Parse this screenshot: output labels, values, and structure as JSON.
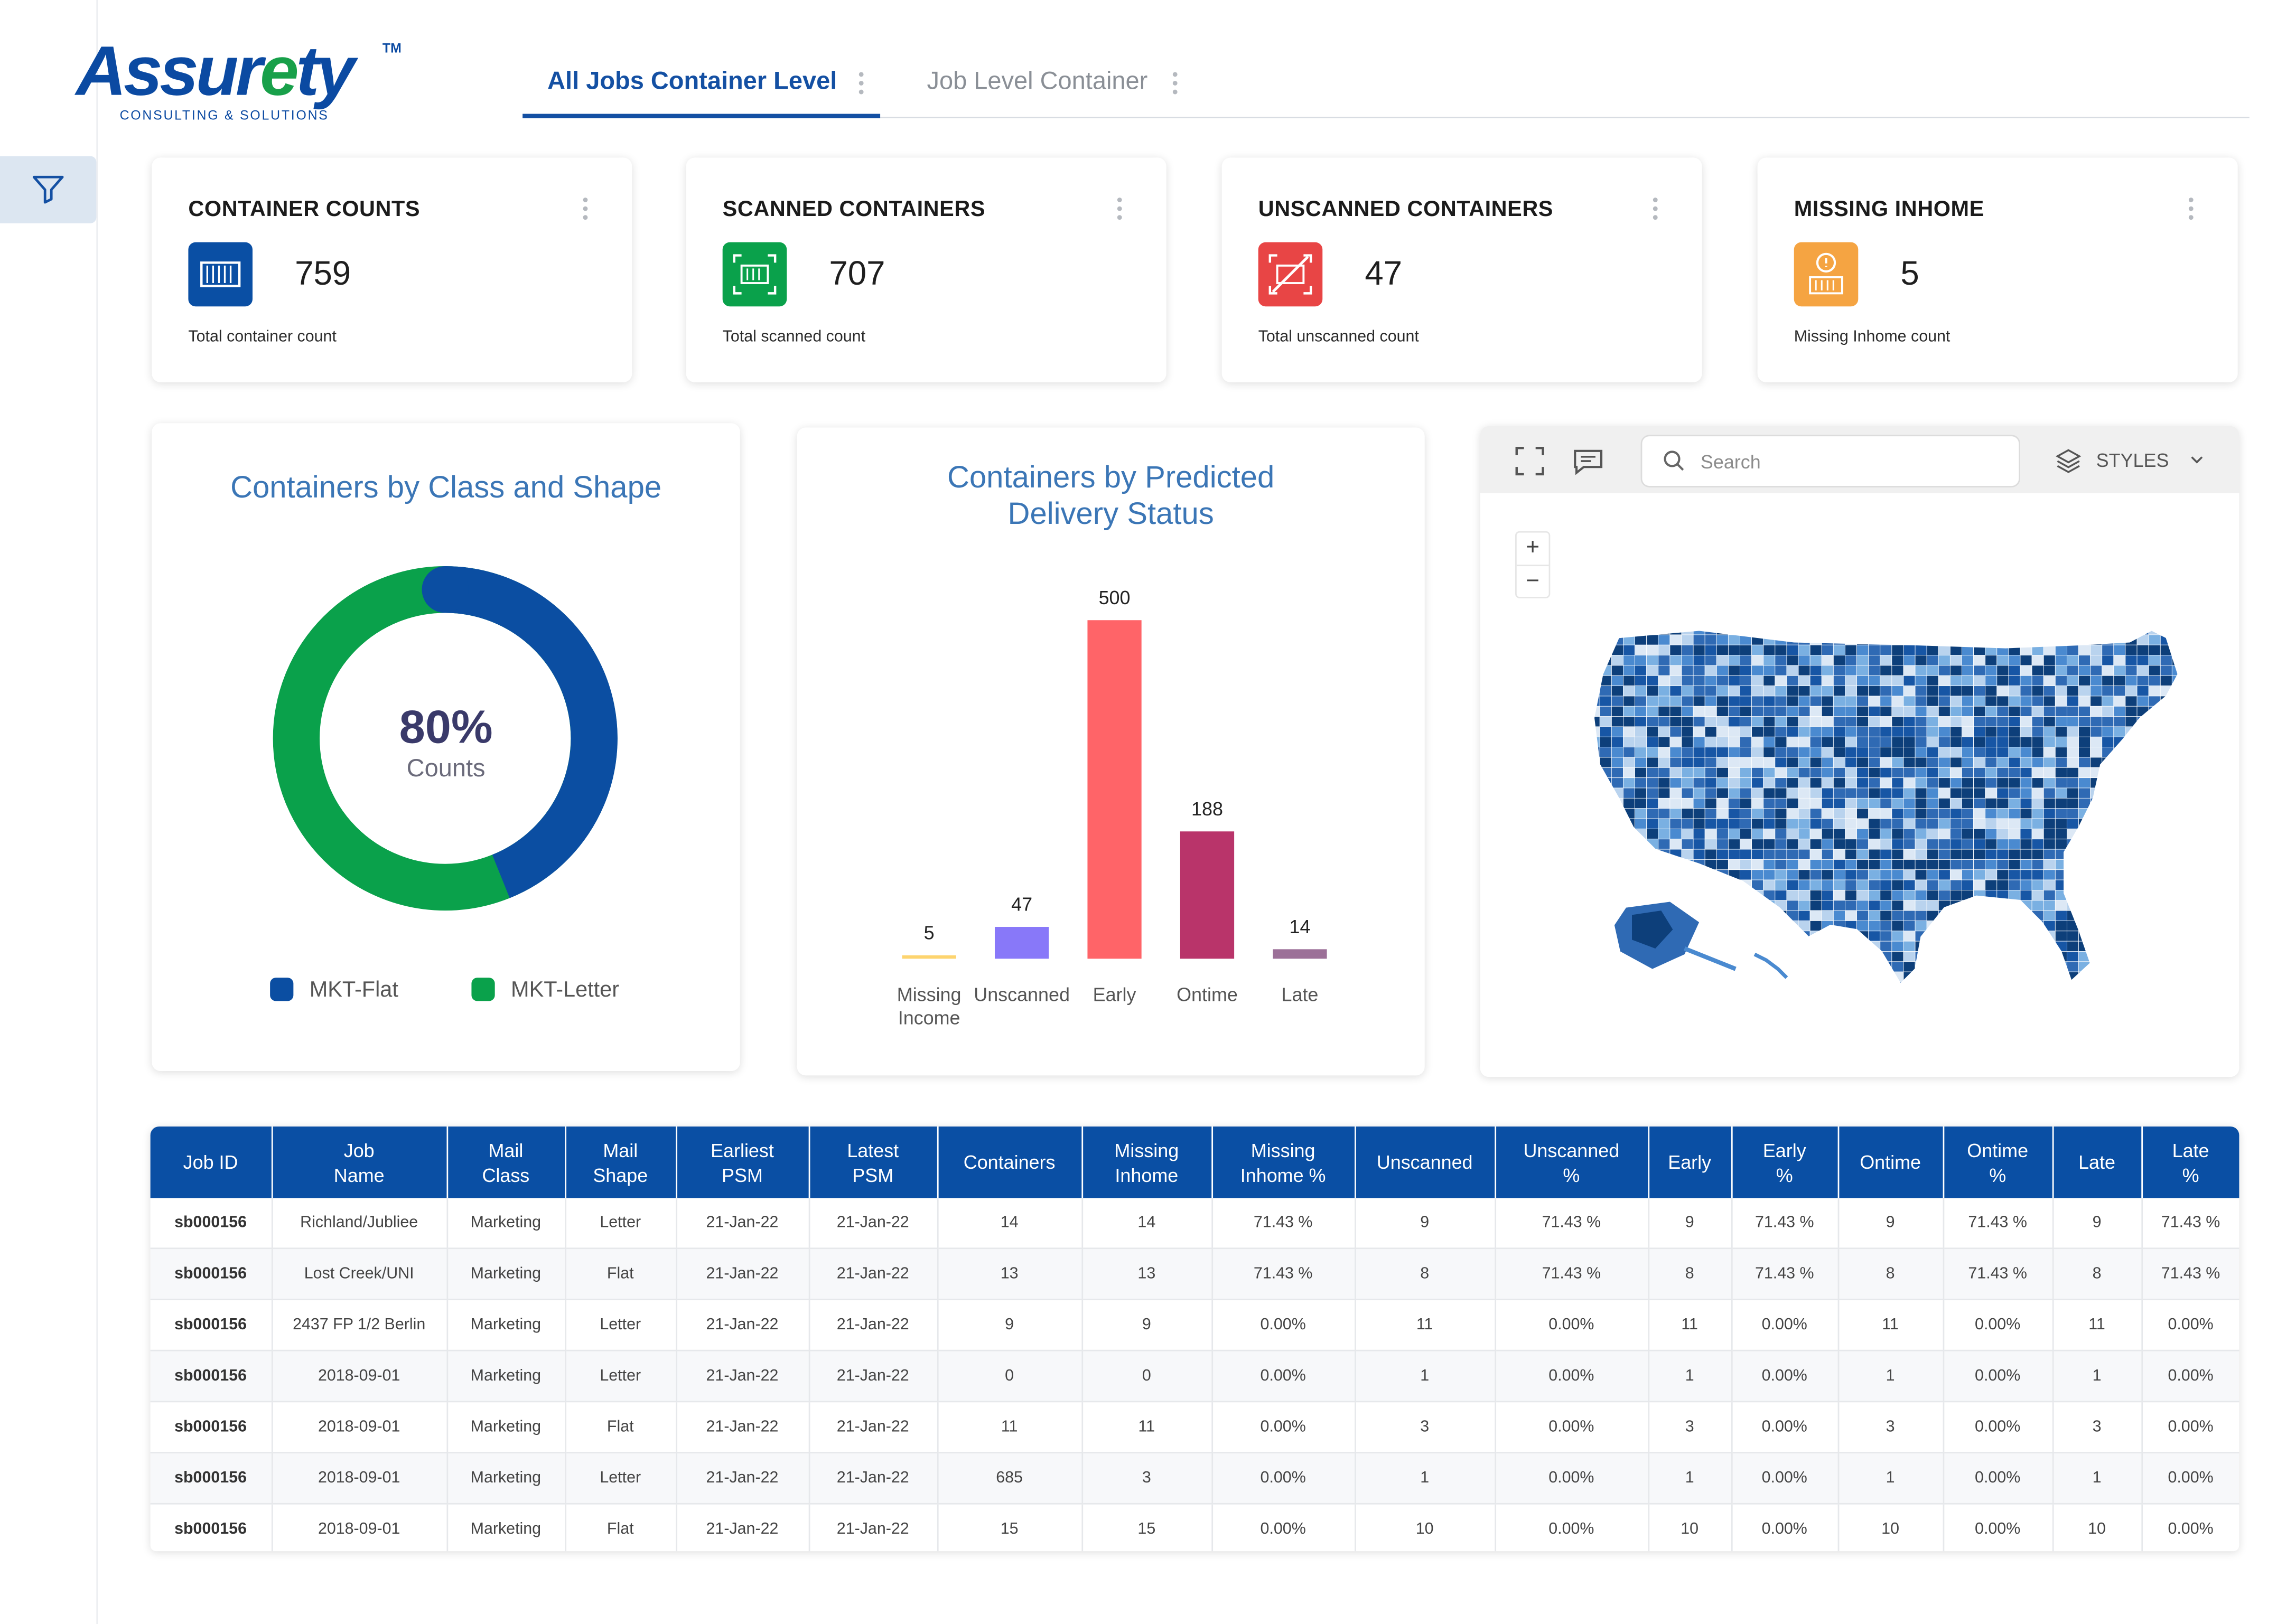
{
  "brand": {
    "name_part1": "Assur",
    "name_e": "e",
    "name_part2": "ty",
    "tm": "TM",
    "tagline": "CONSULTING & SOLUTIONS"
  },
  "tabs": [
    {
      "label": "All Jobs Container Level",
      "active": true
    },
    {
      "label": "Job Level Container",
      "active": false
    }
  ],
  "kpis": [
    {
      "title": "CONTAINER COUNTS",
      "value": "759",
      "subtitle": "Total container count",
      "icon": "container-icon",
      "color": "#0a4fa4"
    },
    {
      "title": "SCANNED CONTAINERS",
      "value": "707",
      "subtitle": "Total scanned count",
      "icon": "scanned-container-icon",
      "color": "#0aa14b"
    },
    {
      "title": "UNSCANNED CONTAINERS",
      "value": "47",
      "subtitle": "Total unscanned count",
      "icon": "unscanned-container-icon",
      "color": "#e84545"
    },
    {
      "title": "MISSING INHOME",
      "value": "5",
      "subtitle": "Missing Inhome count",
      "icon": "missing-container-icon",
      "color": "#f5a442"
    }
  ],
  "donut": {
    "title": "Containers by Class and Shape",
    "center_value": "80%",
    "center_label": "Counts",
    "legend": [
      {
        "name": "MKT-Flat",
        "color": "#0b4ea2"
      },
      {
        "name": "MKT-Letter",
        "color": "#0aa14b"
      }
    ]
  },
  "chart_data": {
    "type": "bar",
    "title": "Containers by Predicted Delivery Status",
    "categories": [
      "Missing Income",
      "Unscanned",
      "Early",
      "Ontime",
      "Late"
    ],
    "category_lines": [
      [
        "Missing",
        "Income"
      ],
      [
        "Unscanned"
      ],
      [
        "Early"
      ],
      [
        "Ontime"
      ],
      [
        "Late"
      ]
    ],
    "values": [
      5,
      47,
      500,
      188,
      14
    ],
    "colors": [
      "#fdd46f",
      "#8878f9",
      "#ff6468",
      "#b9346a",
      "#9c7098"
    ],
    "ylim": [
      0,
      500
    ],
    "grid": false,
    "xlabel": "",
    "ylabel": ""
  },
  "map": {
    "search_placeholder": "Search",
    "styles_label": "STYLES",
    "zoom_in": "+",
    "zoom_out": "−"
  },
  "table": {
    "headers": [
      [
        "Job ID"
      ],
      [
        "Job",
        "Name"
      ],
      [
        "Mail",
        "Class"
      ],
      [
        "Mail",
        "Shape"
      ],
      [
        "Earliest",
        "PSM"
      ],
      [
        "Latest",
        "PSM"
      ],
      [
        "Containers"
      ],
      [
        "Missing",
        "Inhome"
      ],
      [
        "Missing",
        "Inhome %"
      ],
      [
        "Unscanned"
      ],
      [
        "Unscanned",
        "%"
      ],
      [
        "Early"
      ],
      [
        "Early",
        "%"
      ],
      [
        "Ontime"
      ],
      [
        "Ontime",
        "%"
      ],
      [
        "Late"
      ],
      [
        "Late",
        "%"
      ]
    ],
    "rows": [
      [
        "sb000156",
        "Richland/Jubliee",
        "Marketing",
        "Letter",
        "21-Jan-22",
        "21-Jan-22",
        "14",
        "14",
        "71.43 %",
        "9",
        "71.43 %",
        "9",
        "71.43 %",
        "9",
        "71.43 %",
        "9",
        "71.43 %"
      ],
      [
        "sb000156",
        "Lost Creek/UNI",
        "Marketing",
        "Flat",
        "21-Jan-22",
        "21-Jan-22",
        "13",
        "13",
        "71.43 %",
        "8",
        "71.43 %",
        "8",
        "71.43 %",
        "8",
        "71.43 %",
        "8",
        "71.43 %"
      ],
      [
        "sb000156",
        "2437 FP 1/2 Berlin",
        "Marketing",
        "Letter",
        "21-Jan-22",
        "21-Jan-22",
        "9",
        "9",
        "0.00%",
        "11",
        "0.00%",
        "11",
        "0.00%",
        "11",
        "0.00%",
        "11",
        "0.00%"
      ],
      [
        "sb000156",
        "2018-09-01",
        "Marketing",
        "Letter",
        "21-Jan-22",
        "21-Jan-22",
        "0",
        "0",
        "0.00%",
        "1",
        "0.00%",
        "1",
        "0.00%",
        "1",
        "0.00%",
        "1",
        "0.00%"
      ],
      [
        "sb000156",
        "2018-09-01",
        "Marketing",
        "Flat",
        "21-Jan-22",
        "21-Jan-22",
        "11",
        "11",
        "0.00%",
        "3",
        "0.00%",
        "3",
        "0.00%",
        "3",
        "0.00%",
        "3",
        "0.00%"
      ],
      [
        "sb000156",
        "2018-09-01",
        "Marketing",
        "Letter",
        "21-Jan-22",
        "21-Jan-22",
        "685",
        "3",
        "0.00%",
        "1",
        "0.00%",
        "1",
        "0.00%",
        "1",
        "0.00%",
        "1",
        "0.00%"
      ],
      [
        "sb000156",
        "2018-09-01",
        "Marketing",
        "Flat",
        "21-Jan-22",
        "21-Jan-22",
        "15",
        "15",
        "0.00%",
        "10",
        "0.00%",
        "10",
        "0.00%",
        "10",
        "0.00%",
        "10",
        "0.00%"
      ]
    ]
  }
}
